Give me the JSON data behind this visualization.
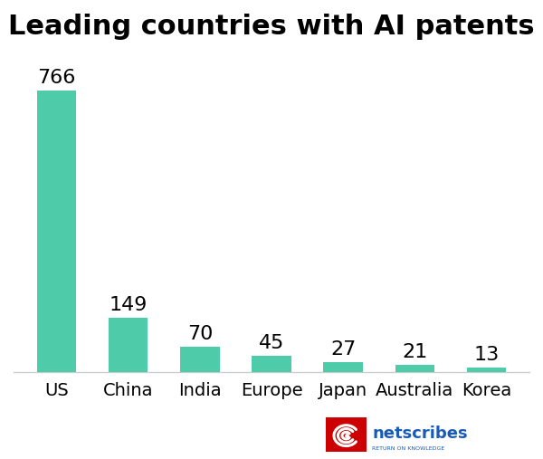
{
  "title": "Leading countries with AI patents",
  "categories": [
    "US",
    "China",
    "India",
    "Europe",
    "Japan",
    "Australia",
    "Korea"
  ],
  "values": [
    766,
    149,
    70,
    45,
    27,
    21,
    13
  ],
  "bar_color": "#4ECBA8",
  "title_fontsize": 22,
  "label_fontsize": 14,
  "value_fontsize": 16,
  "background_color": "#ffffff",
  "ylim": [
    0,
    850
  ],
  "bar_width": 0.55,
  "logo_text": "netscribes",
  "logo_subtext": "RETURN ON KNOWLEDGE",
  "logo_text_color": "#1a5bb5",
  "logo_icon_color": "#cc0000"
}
